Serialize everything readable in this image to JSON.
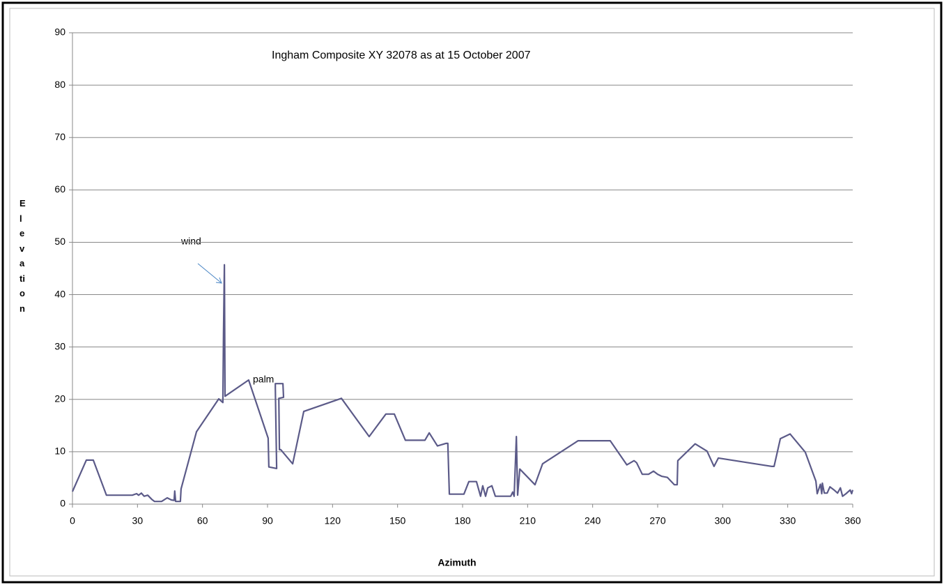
{
  "chart_data": {
    "type": "line",
    "title": "Ingham Composite XY 32078 as at 15 October 2007",
    "x_label": "Azimuth",
    "y_label": "Elevation",
    "annotations": [
      "wind",
      "palm"
    ],
    "x": [
      0,
      6.4,
      9.6,
      15.7,
      27.6,
      29.6,
      30.5,
      31.8,
      33.1,
      34.7,
      36.6,
      37.9,
      41.1,
      43.7,
      45.6,
      46.9,
      47.2,
      47.6,
      49.8,
      50.1,
      57.2,
      67.5,
      69.4,
      69.7,
      70.1,
      70.4,
      81.3,
      90.3,
      90.6,
      94.2,
      93.6,
      93.6,
      97.1,
      97.4,
      95.2,
      95.5,
      96.1,
      101.6,
      106.7,
      124.1,
      136.9,
      144.6,
      148.5,
      153.6,
      162.6,
      164.6,
      168.4,
      172.3,
      173.2,
      173.9,
      180.6,
      182.9,
      186.4,
      188.3,
      189.3,
      190.6,
      191.6,
      193.5,
      195.1,
      202.2,
      203.1,
      203.8,
      204.8,
      205.4,
      206.4,
      213.4,
      216.9,
      233.3,
      248.1,
      255.8,
      259.1,
      260.3,
      262.9,
      265.8,
      268.1,
      270,
      272,
      274.5,
      277.7,
      279,
      279.3,
      287.3,
      292.8,
      296,
      298,
      322.7,
      323.7,
      326.6,
      331.1,
      338.1,
      343,
      343.6,
      345.1,
      345.7,
      346,
      346.9,
      348.2,
      349.5,
      351.4,
      353,
      354.3,
      355.3,
      356.9,
      358.8,
      359.5,
      360
    ],
    "values": [
      2.4,
      8.4,
      8.4,
      1.7,
      1.7,
      2.0,
      1.7,
      2.1,
      1.5,
      1.7,
      0.9,
      0.5,
      0.5,
      1.2,
      0.8,
      0.7,
      2.5,
      0.5,
      0.5,
      2.9,
      13.8,
      20.1,
      19.4,
      32.4,
      45.7,
      20.6,
      23.7,
      12.6,
      7.1,
      6.8,
      22.2,
      23.0,
      23.0,
      20.4,
      20.2,
      10.4,
      10.4,
      7.7,
      17.7,
      20.2,
      12.9,
      17.2,
      17.2,
      12.2,
      12.2,
      13.6,
      11.1,
      11.6,
      11.6,
      1.9,
      1.9,
      4.3,
      4.3,
      1.5,
      3.5,
      1.5,
      3.1,
      3.5,
      1.5,
      1.5,
      2.3,
      1.5,
      12.9,
      1.7,
      6.7,
      3.7,
      7.7,
      12.1,
      12.1,
      7.5,
      8.3,
      7.9,
      5.7,
      5.7,
      6.3,
      5.7,
      5.3,
      5.1,
      3.7,
      3.7,
      8.3,
      11.5,
      10.1,
      7.2,
      8.8,
      7.2,
      7.2,
      12.5,
      13.4,
      9.9,
      4.4,
      2.0,
      3.8,
      2.0,
      4.0,
      2.1,
      2.1,
      3.3,
      2.7,
      2.1,
      3.1,
      1.5,
      2.0,
      2.7,
      2.0,
      2.7
    ],
    "color": "#5b5a88",
    "xlim": [
      0,
      360
    ],
    "xticks": [
      0,
      30,
      60,
      90,
      120,
      150,
      180,
      210,
      240,
      270,
      300,
      330,
      360
    ],
    "ylim": [
      0,
      90
    ],
    "yticks": [
      0,
      10,
      20,
      30,
      40,
      50,
      60,
      70,
      80,
      90
    ],
    "grid": true
  }
}
